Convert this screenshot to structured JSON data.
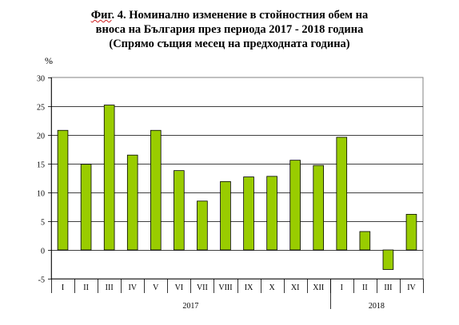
{
  "title": {
    "fig_word": "Фиг",
    "line1_rest": ". 4. Номинално изменение в стойностния обем на",
    "line2": "вноса на България през периода 2017 - 2018 година",
    "line3": "(Спрямо същия месец на предходната година)"
  },
  "chart_data": {
    "type": "bar",
    "title": "Фиг. 4. Номинално изменение в стойностния обем на вноса на България през периода 2017 - 2018 година",
    "subtitle": "(Спрямо същия месец на предходната година)",
    "ylabel": "%",
    "xlabel": "",
    "ylim": [
      -5,
      30
    ],
    "yticks": [
      "30",
      "25",
      "20",
      "15",
      "10",
      "5",
      "0",
      "-5"
    ],
    "grid": true,
    "bar_color": "#99cc00",
    "categories": [
      "I",
      "II",
      "III",
      "IV",
      "V",
      "VI",
      "VII",
      "VIII",
      "IX",
      "X",
      "XI",
      "XII",
      "I",
      "II",
      "III",
      "IV"
    ],
    "values": [
      20.8,
      14.9,
      25.2,
      16.5,
      20.8,
      13.8,
      8.5,
      11.9,
      12.7,
      12.8,
      15.6,
      14.7,
      19.6,
      3.2,
      -3.4,
      6.2
    ],
    "groups": [
      {
        "label": "2017",
        "count": 12
      },
      {
        "label": "2018",
        "count": 4
      }
    ]
  }
}
